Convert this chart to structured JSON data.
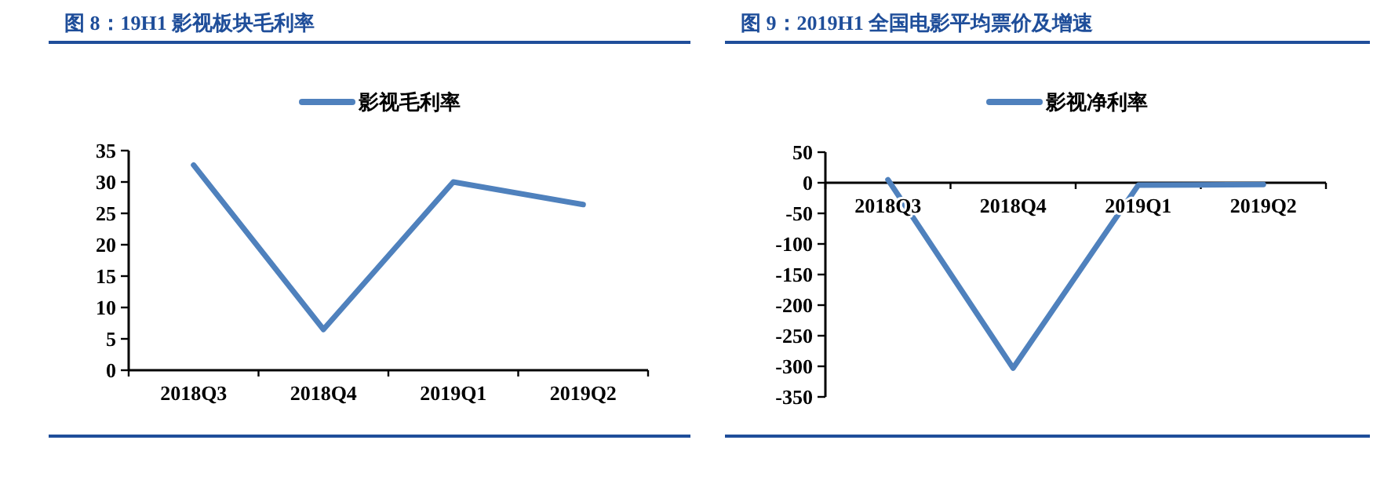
{
  "chart_data": [
    {
      "type": "line",
      "title": "图 8：19H1 影视板块毛利率",
      "categories": [
        "2018Q3",
        "2018Q4",
        "2019Q1",
        "2019Q2"
      ],
      "series": [
        {
          "name": "影视毛利率",
          "color": "#4f81bd",
          "values": [
            32.7,
            6.5,
            30.0,
            26.4
          ]
        }
      ],
      "ylim": [
        0,
        35
      ],
      "yticks": [
        0,
        5,
        10,
        15,
        20,
        25,
        30,
        35
      ],
      "legend": "top",
      "grid": false
    },
    {
      "type": "line",
      "title": "图 9：2019H1 全国电影平均票价及增速",
      "categories": [
        "2018Q3",
        "2018Q4",
        "2019Q1",
        "2019Q2"
      ],
      "series": [
        {
          "name": "影视净利率",
          "color": "#4f81bd",
          "values": [
            5,
            -303,
            -4,
            -3
          ]
        }
      ],
      "ylim": [
        -350,
        50
      ],
      "yticks": [
        -350,
        -300,
        -250,
        -200,
        -150,
        -100,
        -50,
        0,
        50
      ],
      "legend": "top",
      "grid": false
    }
  ]
}
